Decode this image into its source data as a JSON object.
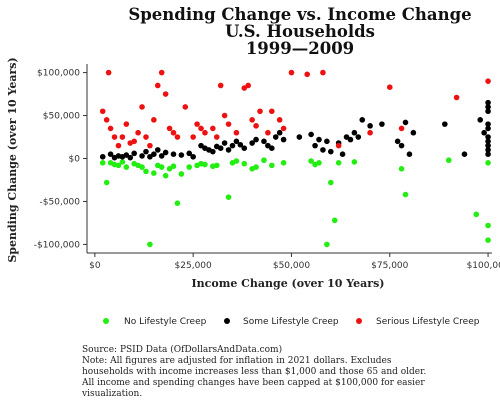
{
  "chart_data": {
    "type": "scatter",
    "title_lines": [
      "Spending Change vs. Income Change",
      "U.S. Households",
      "1999—2009"
    ],
    "xlabel": "Income Change (over 10 Years)",
    "ylabel": "Spending Change (over 10 Years)",
    "xlim": [
      -2000,
      101000
    ],
    "ylim": [
      -110000,
      110000
    ],
    "x_ticks": [
      0,
      25000,
      50000,
      75000,
      100000
    ],
    "x_tick_labels": [
      "$0",
      "$25,000",
      "$50,000",
      "$75,000",
      "$100,000"
    ],
    "y_ticks": [
      100000,
      50000,
      0,
      -50000,
      -100000
    ],
    "y_tick_labels": [
      "$100,000",
      "$50,000",
      "$0",
      "-$50,000",
      "-$100,000"
    ],
    "grid": false,
    "legend_position": "bottom",
    "series": [
      {
        "name": "No Lifestyle Creep",
        "color": "#22ee11",
        "points": [
          [
            2000,
            -5000
          ],
          [
            3000,
            -28000
          ],
          [
            4000,
            -5000
          ],
          [
            5000,
            -7000
          ],
          [
            6000,
            -8000
          ],
          [
            7000,
            -4000
          ],
          [
            8000,
            -10000
          ],
          [
            10000,
            -6000
          ],
          [
            11000,
            -8000
          ],
          [
            12000,
            -10000
          ],
          [
            13000,
            -15000
          ],
          [
            14000,
            -100000
          ],
          [
            15000,
            -17000
          ],
          [
            16000,
            -8000
          ],
          [
            17000,
            -10000
          ],
          [
            18000,
            -20000
          ],
          [
            19000,
            -12000
          ],
          [
            20000,
            -9000
          ],
          [
            21000,
            -52000
          ],
          [
            22000,
            -18000
          ],
          [
            24000,
            -10000
          ],
          [
            26000,
            -8000
          ],
          [
            27000,
            -6000
          ],
          [
            28000,
            -7000
          ],
          [
            30000,
            -9000
          ],
          [
            31000,
            -8000
          ],
          [
            34000,
            -45000
          ],
          [
            35000,
            -5000
          ],
          [
            36000,
            -3000
          ],
          [
            38000,
            -6000
          ],
          [
            40000,
            -12000
          ],
          [
            41000,
            -10000
          ],
          [
            43000,
            -2000
          ],
          [
            45000,
            -8000
          ],
          [
            48000,
            -5000
          ],
          [
            55000,
            -3000
          ],
          [
            56000,
            -7000
          ],
          [
            57000,
            -5000
          ],
          [
            59000,
            -100000
          ],
          [
            60000,
            -28000
          ],
          [
            61000,
            -72000
          ],
          [
            62000,
            -5000
          ],
          [
            66000,
            -4000
          ],
          [
            78000,
            -12000
          ],
          [
            79000,
            -42000
          ],
          [
            90000,
            -2000
          ],
          [
            97000,
            -65000
          ],
          [
            100000,
            -5000
          ],
          [
            100000,
            -78000
          ],
          [
            100000,
            -95000
          ]
        ]
      },
      {
        "name": "Some Lifestyle Creep",
        "color": "#000000",
        "points": [
          [
            2000,
            2000
          ],
          [
            4000,
            5000
          ],
          [
            5000,
            1000
          ],
          [
            6000,
            3000
          ],
          [
            7000,
            2000
          ],
          [
            8000,
            4000
          ],
          [
            9000,
            1000
          ],
          [
            10000,
            6000
          ],
          [
            12000,
            3000
          ],
          [
            13000,
            8000
          ],
          [
            14000,
            2000
          ],
          [
            15000,
            5000
          ],
          [
            16000,
            10000
          ],
          [
            17000,
            3000
          ],
          [
            18000,
            7000
          ],
          [
            20000,
            5000
          ],
          [
            22000,
            4000
          ],
          [
            24000,
            6000
          ],
          [
            25000,
            2000
          ],
          [
            27000,
            15000
          ],
          [
            28000,
            12000
          ],
          [
            29000,
            10000
          ],
          [
            30000,
            8000
          ],
          [
            31000,
            14000
          ],
          [
            32000,
            12000
          ],
          [
            33000,
            18000
          ],
          [
            34000,
            10000
          ],
          [
            35000,
            15000
          ],
          [
            36000,
            20000
          ],
          [
            37000,
            16000
          ],
          [
            38000,
            12000
          ],
          [
            40000,
            18000
          ],
          [
            41000,
            22000
          ],
          [
            43000,
            20000
          ],
          [
            44000,
            15000
          ],
          [
            45000,
            12000
          ],
          [
            46000,
            25000
          ],
          [
            47000,
            30000
          ],
          [
            48000,
            22000
          ],
          [
            52000,
            25000
          ],
          [
            55000,
            28000
          ],
          [
            56000,
            15000
          ],
          [
            57000,
            22000
          ],
          [
            58000,
            10000
          ],
          [
            59000,
            20000
          ],
          [
            60000,
            8000
          ],
          [
            62000,
            18000
          ],
          [
            63000,
            5000
          ],
          [
            64000,
            25000
          ],
          [
            65000,
            22000
          ],
          [
            66000,
            30000
          ],
          [
            67000,
            25000
          ],
          [
            68000,
            45000
          ],
          [
            70000,
            38000
          ],
          [
            73000,
            40000
          ],
          [
            77000,
            20000
          ],
          [
            78000,
            15000
          ],
          [
            79000,
            42000
          ],
          [
            80000,
            5000
          ],
          [
            81000,
            30000
          ],
          [
            89000,
            40000
          ],
          [
            94000,
            5000
          ],
          [
            98000,
            45000
          ],
          [
            99000,
            30000
          ],
          [
            100000,
            5000
          ],
          [
            100000,
            10000
          ],
          [
            100000,
            15000
          ],
          [
            100000,
            20000
          ],
          [
            100000,
            25000
          ],
          [
            100000,
            35000
          ],
          [
            100000,
            40000
          ],
          [
            100000,
            55000
          ],
          [
            100000,
            60000
          ],
          [
            100000,
            65000
          ]
        ]
      },
      {
        "name": "Serious Lifestyle Creep",
        "color": "#ee1111",
        "points": [
          [
            2000,
            55000
          ],
          [
            3000,
            45000
          ],
          [
            3500,
            100000
          ],
          [
            4000,
            35000
          ],
          [
            5000,
            25000
          ],
          [
            6000,
            15000
          ],
          [
            7000,
            25000
          ],
          [
            8000,
            40000
          ],
          [
            9000,
            18000
          ],
          [
            10000,
            20000
          ],
          [
            11000,
            30000
          ],
          [
            12000,
            60000
          ],
          [
            13000,
            25000
          ],
          [
            14000,
            15000
          ],
          [
            15000,
            45000
          ],
          [
            16000,
            85000
          ],
          [
            17000,
            100000
          ],
          [
            18000,
            75000
          ],
          [
            19000,
            35000
          ],
          [
            20000,
            30000
          ],
          [
            21000,
            25000
          ],
          [
            23000,
            60000
          ],
          [
            25000,
            25000
          ],
          [
            26000,
            40000
          ],
          [
            27000,
            35000
          ],
          [
            28000,
            30000
          ],
          [
            30000,
            35000
          ],
          [
            31000,
            25000
          ],
          [
            32000,
            85000
          ],
          [
            33000,
            50000
          ],
          [
            34000,
            40000
          ],
          [
            36000,
            30000
          ],
          [
            38000,
            82000
          ],
          [
            39000,
            85000
          ],
          [
            40000,
            45000
          ],
          [
            41000,
            38000
          ],
          [
            42000,
            55000
          ],
          [
            44000,
            30000
          ],
          [
            45000,
            55000
          ],
          [
            47000,
            45000
          ],
          [
            48000,
            35000
          ],
          [
            50000,
            100000
          ],
          [
            54000,
            98000
          ],
          [
            58000,
            100000
          ],
          [
            62000,
            15000
          ],
          [
            70000,
            30000
          ],
          [
            75000,
            83000
          ],
          [
            78000,
            35000
          ],
          [
            92000,
            71000
          ],
          [
            100000,
            90000
          ]
        ]
      }
    ],
    "source": "Source: PSID Data (OfDollarsAndData.com)",
    "notes": [
      "Note: All figures are adjusted for inflation in 2021 dollars. Excludes",
      "households with income increases less than $1,000 and those 65 and older.",
      "All income and spending changes have been capped at $100,000 for easier",
      "visualization."
    ]
  }
}
